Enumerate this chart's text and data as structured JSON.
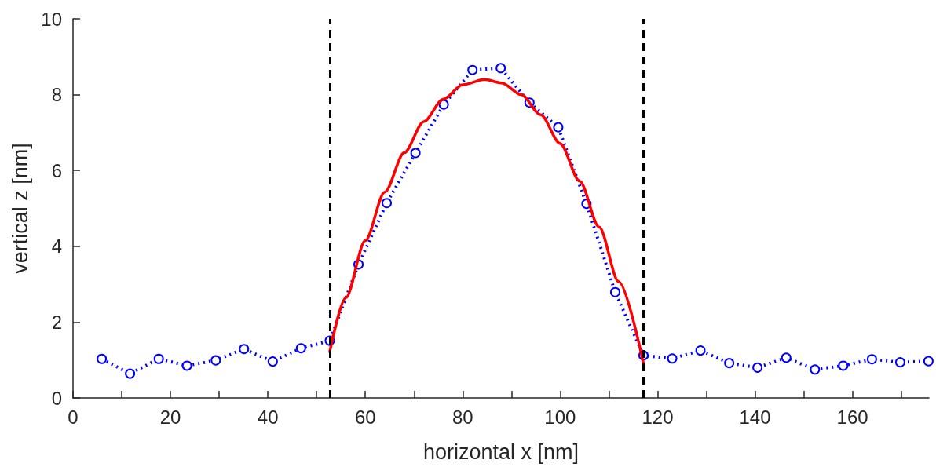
{
  "chart_data": {
    "type": "line",
    "xlabel": "horizontal x [nm]",
    "ylabel": "vertical z [nm]",
    "xlim": [
      0,
      175.7
    ],
    "xticks": [
      0,
      {
        "value": 10,
        "label": null
      },
      20,
      {
        "value": 30,
        "label": null
      },
      40,
      {
        "value": 50,
        "label": null
      },
      60,
      {
        "value": 70,
        "label": null
      },
      80,
      {
        "value": 90,
        "label": null
      },
      100,
      {
        "value": 110,
        "label": null
      },
      120,
      {
        "value": 130,
        "label": null
      },
      140,
      {
        "value": 150,
        "label": null
      },
      160,
      {
        "value": 170,
        "label": null
      }
    ],
    "ylim": [
      0,
      10
    ],
    "yticks": [
      0,
      2,
      4,
      6,
      8,
      10
    ],
    "grid": false,
    "series": [
      {
        "color": "#0000ff",
        "marker": "circle",
        "line_style": "dotted",
        "x": [
          5.9,
          11.7,
          17.6,
          23.4,
          29.3,
          35.1,
          41.0,
          46.8,
          52.7,
          58.6,
          64.4,
          70.3,
          76.1,
          82.0,
          87.8,
          93.7,
          99.6,
          105.4,
          111.3,
          117.1,
          123.0,
          128.8,
          134.7,
          140.5,
          146.4,
          152.3,
          158.1,
          164.0,
          169.8,
          175.6
        ],
        "values": [
          1.03,
          0.64,
          1.03,
          0.85,
          0.99,
          1.29,
          0.96,
          1.31,
          1.51,
          3.52,
          5.14,
          6.46,
          7.74,
          8.65,
          8.7,
          7.79,
          7.14,
          5.12,
          2.79,
          1.12,
          1.04,
          1.25,
          0.92,
          0.8,
          1.06,
          0.75,
          0.85,
          1.02,
          0.94,
          0.97
        ]
      },
      {
        "color": "#ff0000",
        "marker": "none",
        "line_style": "solid",
        "x": [
          52.7,
          56,
          60,
          64,
          68,
          72,
          76,
          80,
          84.5,
          88,
          92,
          96,
          100,
          104,
          108,
          112,
          117.1
        ],
        "values": [
          1.22,
          2.64,
          4.15,
          5.43,
          6.47,
          7.29,
          7.88,
          8.26,
          8.4,
          8.31,
          8.0,
          7.47,
          6.71,
          5.72,
          4.51,
          3.07,
          0.91
        ]
      }
    ],
    "ref_lines": [
      {
        "axis": "x",
        "value": 52.7,
        "color": "#000000",
        "line_style": "dashed"
      },
      {
        "axis": "x",
        "value": 117.1,
        "color": "#000000",
        "line_style": "dashed"
      }
    ]
  }
}
